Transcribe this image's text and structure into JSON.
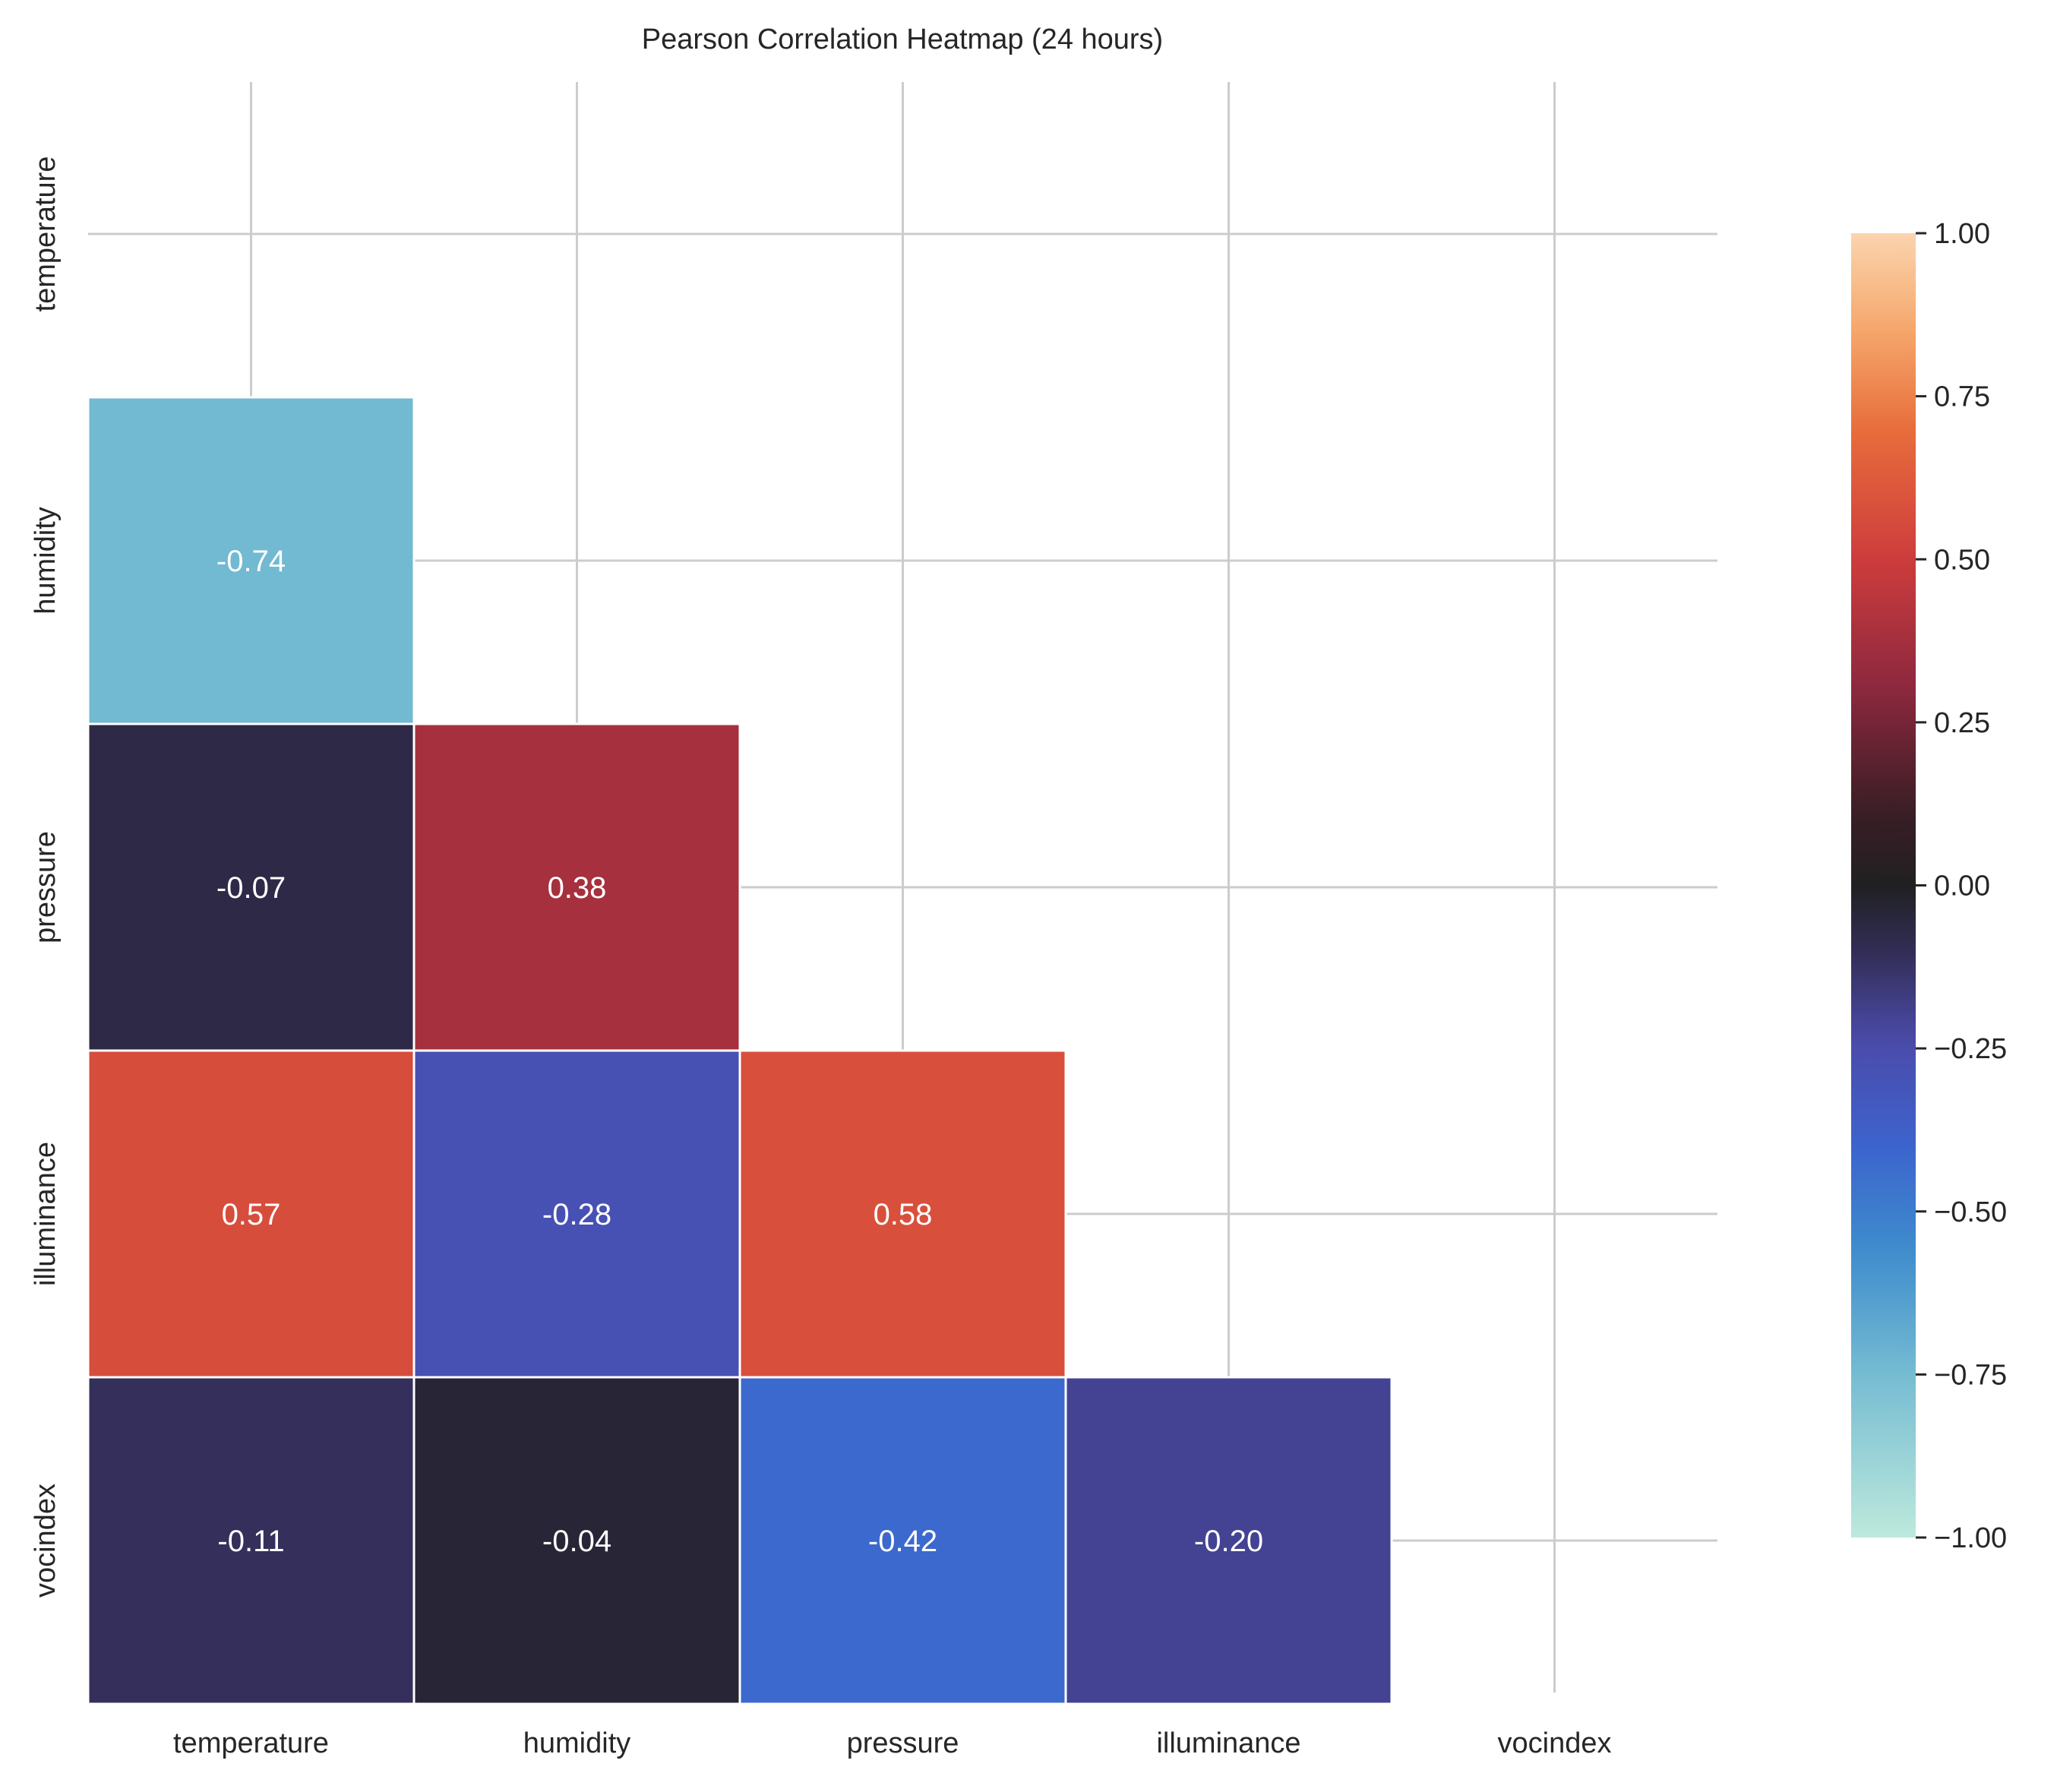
{
  "chart_data": {
    "type": "heatmap",
    "title": "Pearson Correlation Heatmap (24 hours)",
    "xlabel": "",
    "ylabel": "",
    "x_categories": [
      "temperature",
      "humidity",
      "pressure",
      "illuminance",
      "vocindex"
    ],
    "y_categories": [
      "temperature",
      "humidity",
      "pressure",
      "illuminance",
      "vocindex"
    ],
    "mask": "upper-triangle-including-diagonal",
    "values": [
      [
        null,
        null,
        null,
        null,
        null
      ],
      [
        -0.74,
        null,
        null,
        null,
        null
      ],
      [
        -0.07,
        0.38,
        null,
        null,
        null
      ],
      [
        0.57,
        -0.28,
        0.58,
        null,
        null
      ],
      [
        -0.11,
        -0.04,
        -0.42,
        -0.2,
        null
      ]
    ],
    "value_labels": [
      [
        "",
        "",
        "",
        "",
        ""
      ],
      [
        "-0.74",
        "",
        "",
        "",
        ""
      ],
      [
        "-0.07",
        "0.38",
        "",
        "",
        ""
      ],
      [
        "0.57",
        "-0.28",
        "0.58",
        "",
        ""
      ],
      [
        "-0.11",
        "-0.04",
        "-0.42",
        "-0.20",
        ""
      ]
    ],
    "colormap": "icefire",
    "vmin": -1.0,
    "vmax": 1.0,
    "colorbar": {
      "ticks": [
        1.0,
        0.75,
        0.5,
        0.25,
        0.0,
        -0.25,
        -0.5,
        -0.75,
        -1.0
      ],
      "tick_labels": [
        "1.00",
        "0.75",
        "0.50",
        "0.25",
        "0.00",
        "−0.25",
        "−0.50",
        "−0.75",
        "−1.00"
      ],
      "placement": "right"
    },
    "grid": true,
    "colors": {
      "grid": "#cccccc",
      "cell_border": "#ffffff",
      "annotation_text": "#ffffff",
      "axis_text": "#262626"
    }
  }
}
